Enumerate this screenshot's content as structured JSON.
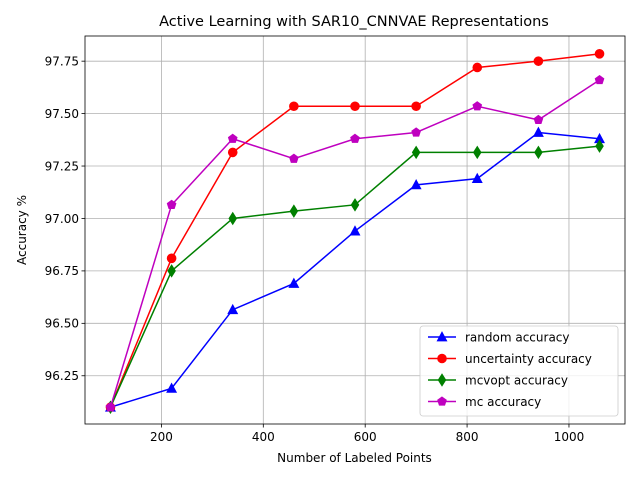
{
  "chart_data": {
    "type": "line",
    "title": "Active Learning with SAR10_CNNVAE Representations",
    "xlabel": "Number of Labeled Points",
    "ylabel": "Accuracy %",
    "xlim": [
      50,
      1110
    ],
    "ylim": [
      96.02,
      97.87
    ],
    "xticks": [
      200,
      400,
      600,
      800,
      1000
    ],
    "xtick_labels": [
      "200",
      "400",
      "600",
      "800",
      "1000"
    ],
    "yticks": [
      96.25,
      96.5,
      96.75,
      97.0,
      97.25,
      97.5,
      97.75
    ],
    "ytick_labels": [
      "96.25",
      "96.50",
      "96.75",
      "97.00",
      "97.25",
      "97.50",
      "97.75"
    ],
    "grid": true,
    "legend_position": "lower right",
    "x": [
      100,
      220,
      340,
      460,
      580,
      700,
      820,
      940,
      1060
    ],
    "series": [
      {
        "name": "random accuracy",
        "color": "#0000ff",
        "marker": "triangle",
        "values": [
          96.1,
          96.19,
          96.565,
          96.69,
          96.94,
          97.16,
          97.19,
          97.41,
          97.38
        ]
      },
      {
        "name": "uncertainty accuracy",
        "color": "#ff0000",
        "marker": "circle",
        "values": [
          96.1,
          96.81,
          97.315,
          97.535,
          97.535,
          97.535,
          97.72,
          97.75,
          97.785
        ]
      },
      {
        "name": "mcvopt accuracy",
        "color": "#008000",
        "marker": "diamond",
        "values": [
          96.1,
          96.75,
          97.0,
          97.035,
          97.065,
          97.315,
          97.315,
          97.315,
          97.345
        ]
      },
      {
        "name": "mc accuracy",
        "color": "#bf00bf",
        "marker": "pentagon",
        "values": [
          96.1,
          97.065,
          97.38,
          97.285,
          97.38,
          97.41,
          97.535,
          97.47,
          97.66
        ]
      }
    ]
  }
}
